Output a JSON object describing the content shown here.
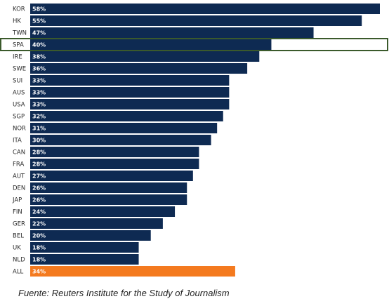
{
  "chart_data": {
    "type": "bar",
    "orientation": "horizontal",
    "categories": [
      "KOR",
      "HK",
      "TWN",
      "SPA",
      "IRE",
      "SWE",
      "SUI",
      "AUS",
      "USA",
      "SGP",
      "NOR",
      "ITA",
      "CAN",
      "FRA",
      "AUT",
      "DEN",
      "JAP",
      "FIN",
      "GER",
      "BEL",
      "UK",
      "NLD",
      "ALL"
    ],
    "values": [
      58,
      55,
      47,
      40,
      38,
      36,
      33,
      33,
      33,
      32,
      31,
      30,
      28,
      28,
      27,
      26,
      26,
      24,
      22,
      20,
      18,
      18,
      34
    ],
    "value_labels": [
      "58%",
      "55%",
      "47%",
      "40%",
      "38%",
      "36%",
      "33%",
      "33%",
      "33%",
      "32%",
      "31%",
      "30%",
      "28%",
      "28%",
      "27%",
      "26%",
      "26%",
      "24%",
      "22%",
      "20%",
      "18%",
      "18%",
      "34%"
    ],
    "highlighted_category": "SPA",
    "xlim": [
      0,
      58
    ],
    "grid": false,
    "legend": "none"
  },
  "colors": {
    "bar": "#0e2a52",
    "bar_all": "#f47a1f",
    "highlight_border": "#3b5a2c"
  },
  "source": "Fuente: Reuters Institute for the Study of Journalism"
}
